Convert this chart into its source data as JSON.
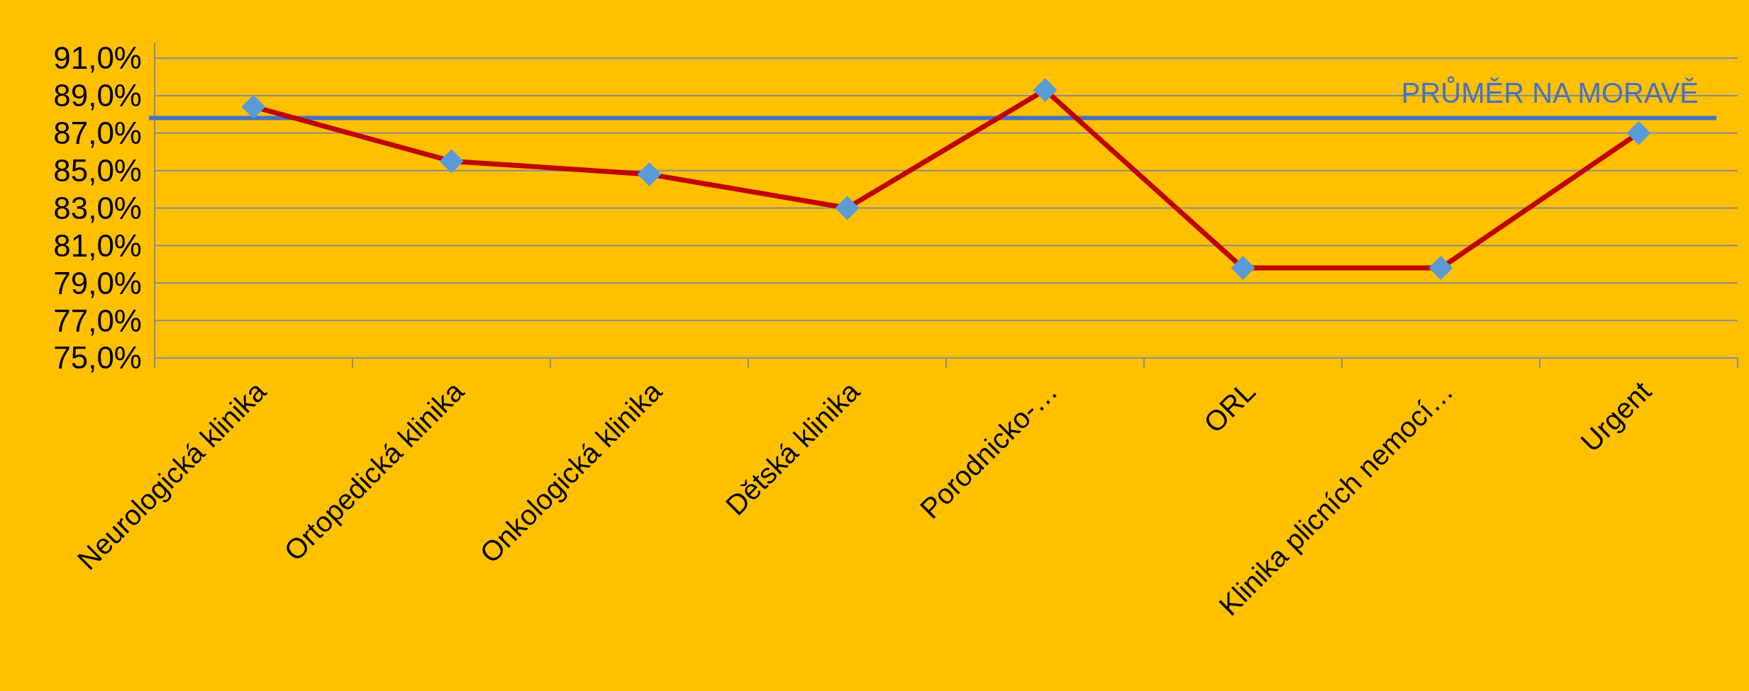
{
  "chart_data": {
    "type": "line",
    "categories": [
      "Neurologická klinika",
      "Ortopedická klinika",
      "Onkologická klinika",
      "Dětská klinika",
      "Porodnicko-…",
      "ORL",
      "Klinika plicních nemocí…",
      "Urgent"
    ],
    "series": [
      {
        "color": "#c00000",
        "values": [
          88.4,
          85.5,
          84.8,
          83.0,
          89.3,
          79.8,
          79.8,
          87.0
        ]
      }
    ],
    "ylim": [
      75,
      91
    ],
    "yticks": [
      {
        "value": 75,
        "label": "75,0%"
      },
      {
        "value": 77,
        "label": "77,0%"
      },
      {
        "value": 79,
        "label": "79,0%"
      },
      {
        "value": 81,
        "label": "81,0%"
      },
      {
        "value": 83,
        "label": "83,0%"
      },
      {
        "value": 85,
        "label": "85,0%"
      },
      {
        "value": 87,
        "label": "87,0%"
      },
      {
        "value": 89,
        "label": "89,0%"
      },
      {
        "value": 91,
        "label": "91,0%"
      }
    ],
    "grid": "y",
    "marker": "diamond",
    "line_style": "solid",
    "ref_lines": [
      {
        "axis": "y",
        "value": 87.8,
        "label": "PRŮMĚR NA MORAVĚ",
        "color": "#4472c4"
      }
    ]
  }
}
